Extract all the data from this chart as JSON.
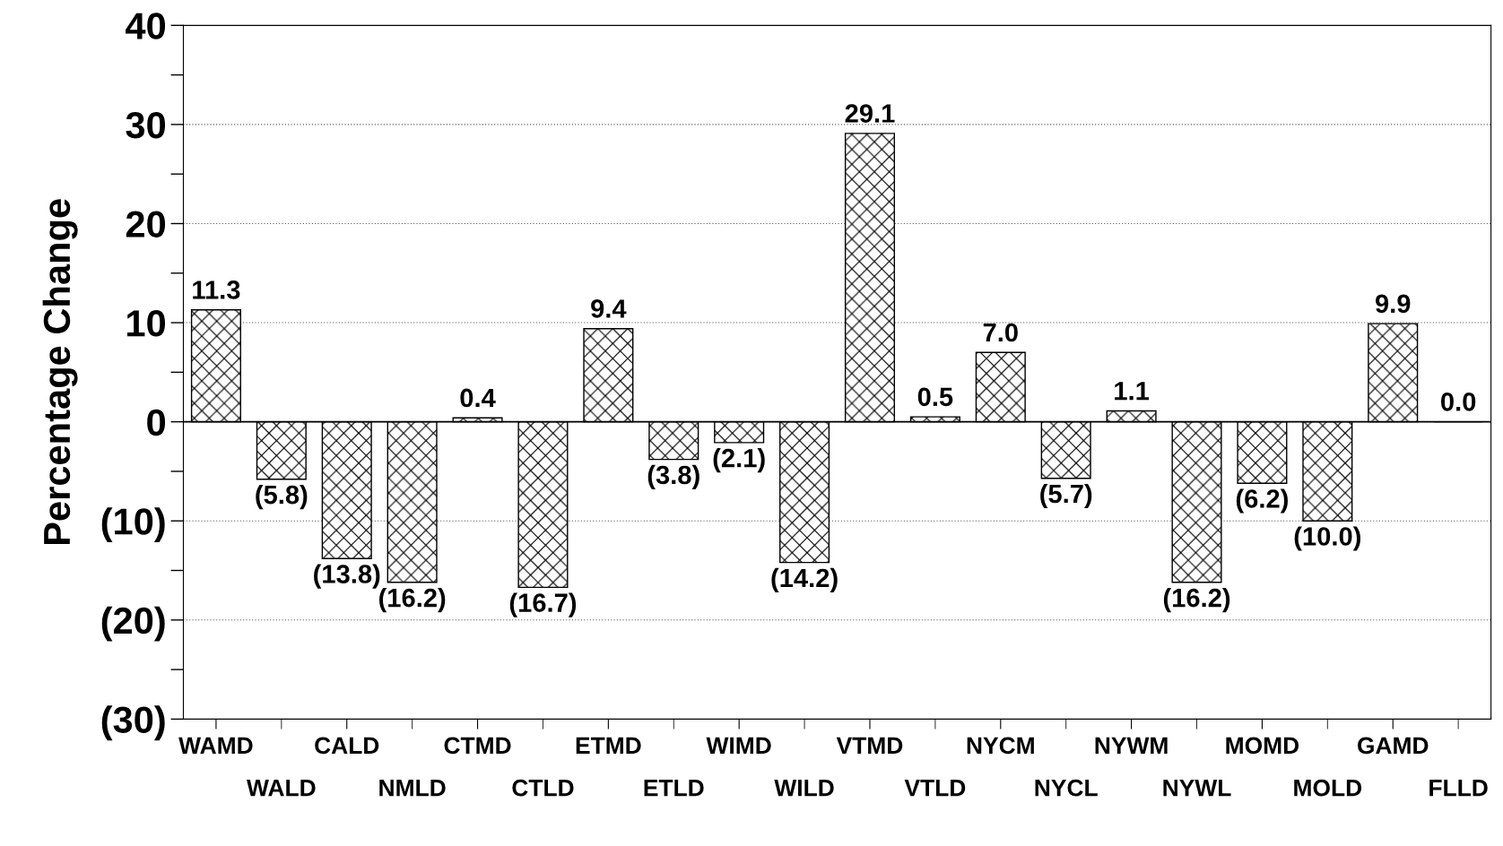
{
  "chart_data": {
    "type": "bar",
    "ylabel": "Percentage Change",
    "categories": [
      "WAMD",
      "WALD",
      "CALD",
      "NMLD",
      "CTMD",
      "CTLD",
      "ETMD",
      "ETLD",
      "WIMD",
      "WILD",
      "VTMD",
      "VTLD",
      "NYCM",
      "NYCL",
      "NYWM",
      "NYWL",
      "MOMD",
      "MOLD",
      "GAMD",
      "FLLD"
    ],
    "values": [
      11.3,
      -5.8,
      -13.8,
      -16.2,
      0.4,
      -16.7,
      9.4,
      -3.8,
      -2.1,
      -14.2,
      29.1,
      0.5,
      7.0,
      -5.7,
      1.1,
      -16.2,
      -6.2,
      -10.0,
      9.9,
      0.0
    ],
    "value_labels": [
      "11.3",
      "(5.8)",
      "(13.8)",
      "(16.2)",
      "0.4",
      "(16.7)",
      "9.4",
      "(3.8)",
      "(2.1)",
      "(14.2)",
      "29.1",
      "0.5",
      "7.0",
      "(5.7)",
      "1.1",
      "(16.2)",
      "(6.2)",
      "(10.0)",
      "9.9",
      "0.0"
    ],
    "color": "#000000",
    "ylim": [
      -30,
      40
    ],
    "yticks": [
      {
        "value": -30,
        "label": "(30)"
      },
      {
        "value": -25,
        "label": null
      },
      {
        "value": -20,
        "label": "(20)"
      },
      {
        "value": -15,
        "label": null
      },
      {
        "value": -10,
        "label": "(10)"
      },
      {
        "value": -5,
        "label": null
      },
      0,
      {
        "value": 5,
        "label": null
      },
      10,
      {
        "value": 15,
        "label": null
      },
      20,
      {
        "value": 25,
        "label": null
      },
      30,
      {
        "value": 35,
        "label": null
      },
      40
    ],
    "grid": "y",
    "ref_lines": [
      {
        "axis": "y",
        "value": 0,
        "color": "#000000",
        "line_style": "solid"
      }
    ]
  }
}
